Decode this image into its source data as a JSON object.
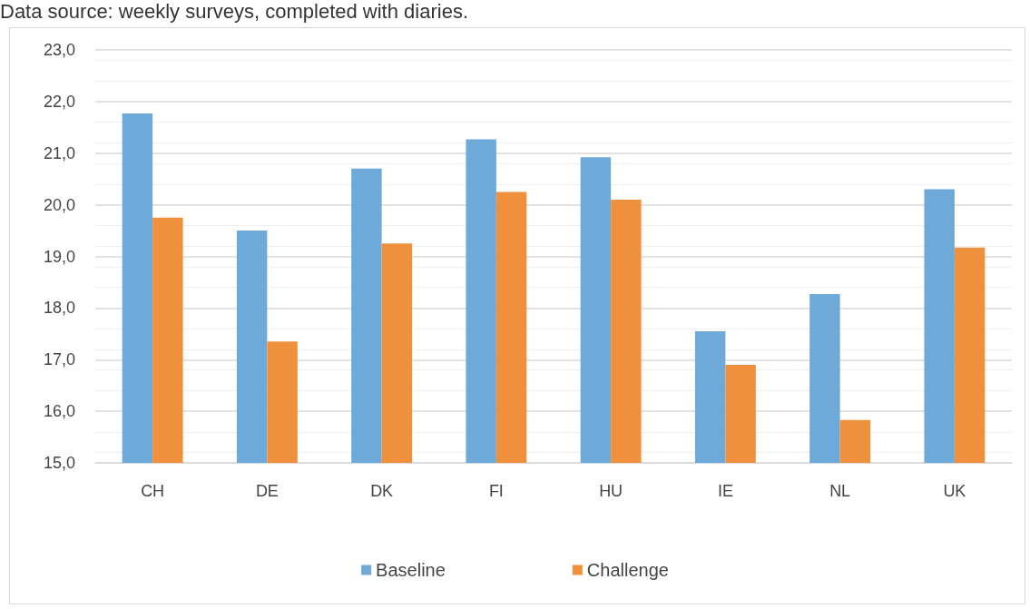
{
  "chart_data": {
    "type": "bar",
    "annotations": [
      "Data source: weekly surveys, completed with diaries."
    ],
    "categories": [
      "CH",
      "DE",
      "DK",
      "FI",
      "HU",
      "IE",
      "NL",
      "UK"
    ],
    "series": [
      {
        "name": "Baseline",
        "color": "#6daad9",
        "values": [
          21.77,
          19.5,
          20.7,
          21.27,
          20.92,
          17.55,
          18.27,
          20.3
        ]
      },
      {
        "name": "Challenge",
        "color": "#ef913c",
        "values": [
          19.75,
          17.35,
          19.25,
          20.25,
          20.1,
          16.9,
          15.83,
          19.17
        ]
      }
    ],
    "ylim": [
      15,
      23
    ],
    "yticks": [
      {
        "value": 15,
        "label": "15,0"
      },
      {
        "value": 16,
        "label": "16,0"
      },
      {
        "value": 17,
        "label": "17,0"
      },
      {
        "value": 18,
        "label": "18,0"
      },
      {
        "value": 19,
        "label": "19,0"
      },
      {
        "value": 20,
        "label": "20,0"
      },
      {
        "value": 21,
        "label": "21,0"
      },
      {
        "value": 22,
        "label": "22,0"
      },
      {
        "value": 23,
        "label": "23,0"
      }
    ],
    "grid": "y",
    "legend": "bottom"
  }
}
